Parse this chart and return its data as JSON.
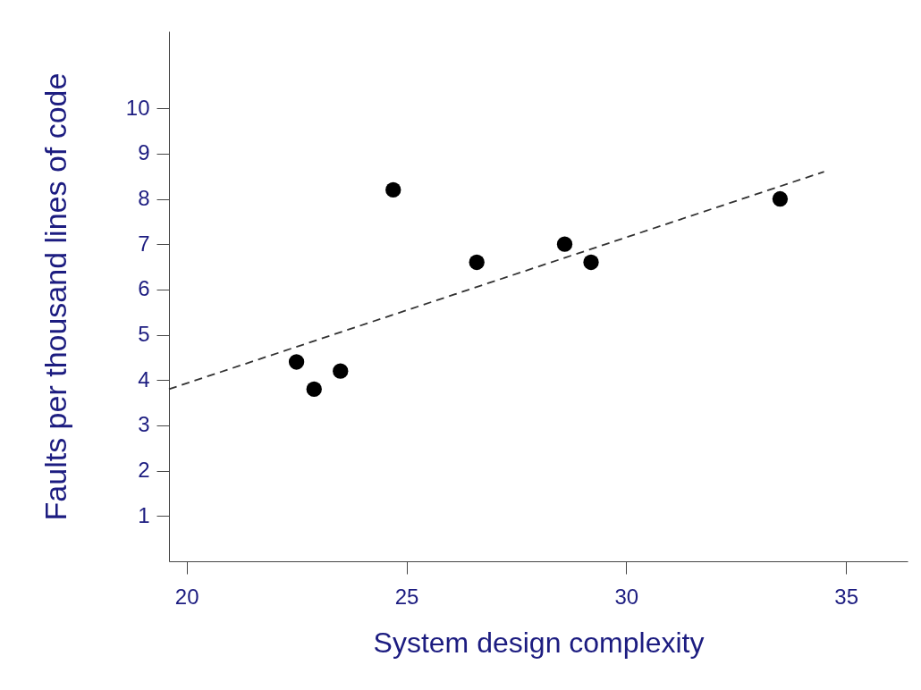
{
  "chart_data": {
    "type": "scatter",
    "xlabel": "System design complexity",
    "ylabel": "Faults per thousand lines of code",
    "series": [
      {
        "color": "#000000",
        "marker": "circle",
        "x": [
          22.5,
          22.9,
          23.5,
          24.7,
          26.6,
          28.6,
          29.2,
          33.5
        ],
        "values": [
          4.4,
          3.8,
          4.2,
          8.2,
          6.6,
          7.0,
          6.6,
          8.0
        ]
      },
      {
        "type": "line",
        "color": "#333333",
        "line_style": "dashed",
        "x": [
          19.6,
          34.5
        ],
        "values": [
          3.8,
          8.6
        ]
      }
    ],
    "xlim": [
      19.6,
      36.4
    ],
    "ylim": [
      0,
      11.7
    ],
    "xticks": [
      20,
      25,
      30,
      35
    ],
    "yticks": [
      1,
      2,
      3,
      4,
      5,
      6,
      7,
      8,
      9,
      10
    ],
    "grid": false
  }
}
